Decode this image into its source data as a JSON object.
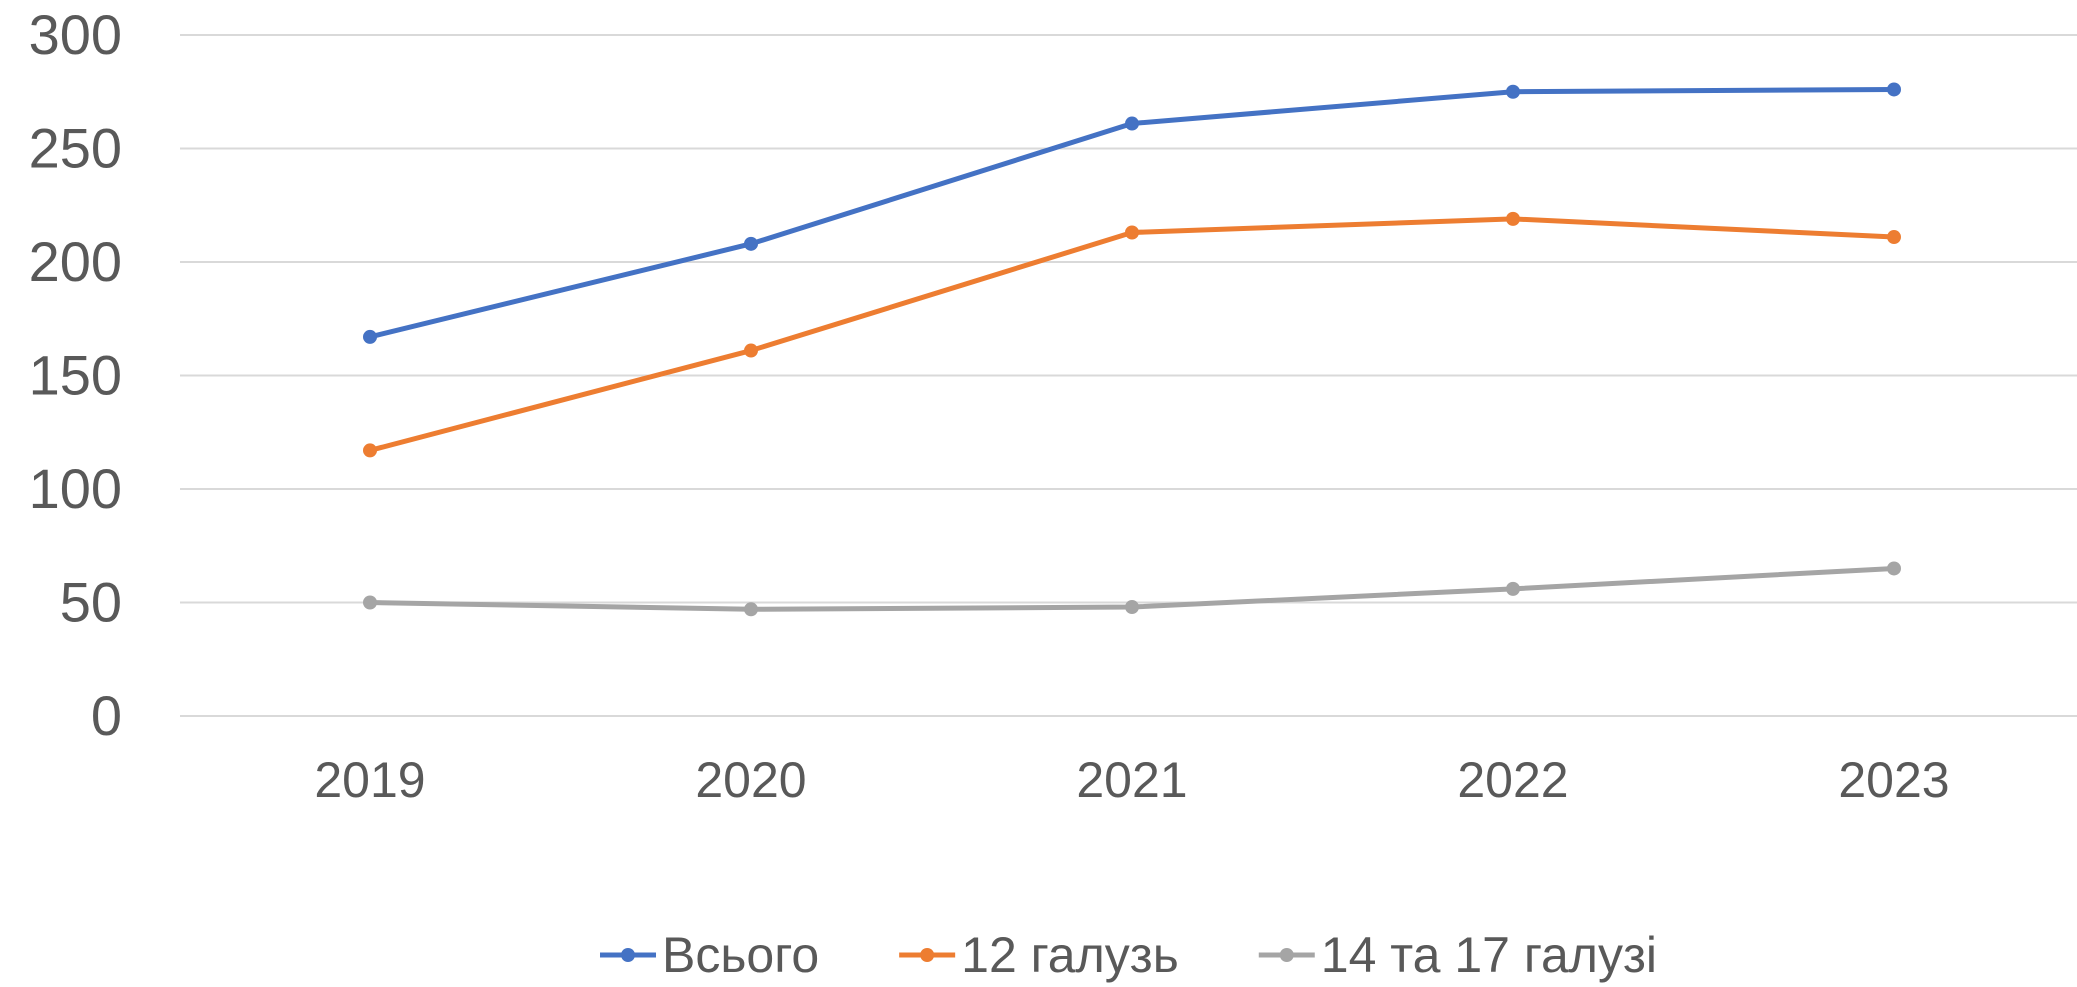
{
  "chart_data": {
    "type": "line",
    "title": "",
    "xlabel": "",
    "ylabel": "",
    "categories": [
      "2019",
      "2020",
      "2021",
      "2022",
      "2023"
    ],
    "ylim": [
      0,
      300
    ],
    "yticks": [
      0,
      50,
      100,
      150,
      200,
      250,
      300
    ],
    "grid": true,
    "legend_position": "bottom",
    "series": [
      {
        "name": "Всього",
        "color": "#4472c4",
        "values": [
          167,
          208,
          261,
          275,
          276
        ]
      },
      {
        "name": "12 галузь",
        "color": "#ed7d31",
        "values": [
          117,
          161,
          213,
          219,
          211
        ]
      },
      {
        "name": "14 та 17 галузі",
        "color": "#a5a5a5",
        "values": [
          50,
          47,
          48,
          56,
          65
        ]
      }
    ]
  }
}
